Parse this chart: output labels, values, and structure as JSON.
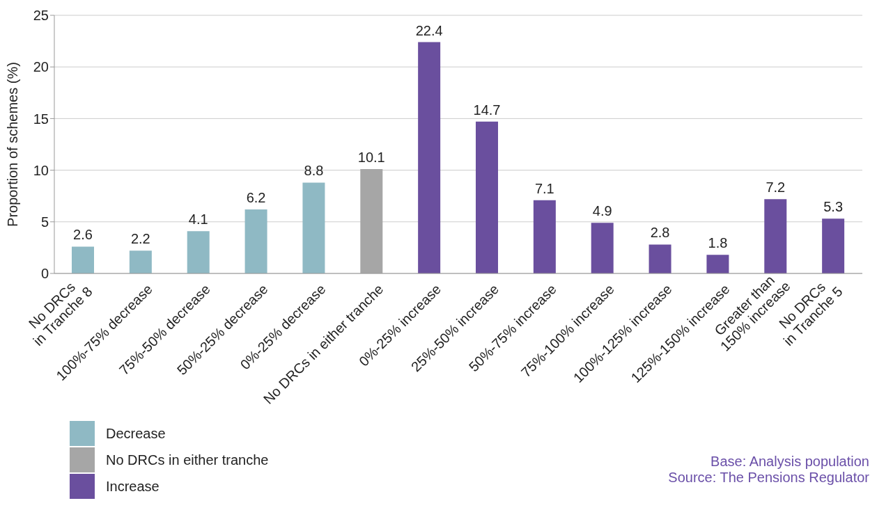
{
  "chart_data": {
    "type": "bar",
    "ylabel": "Proportion of schemes (%)",
    "categories": [
      "No DRCs\nin Tranche 8",
      "100%-75% decrease",
      "75%-50% decrease",
      "50%-25% decrease",
      "0%-25% decrease",
      "No DRCs in either tranche",
      "0%-25% increase",
      "25%-50% increase",
      "50%-75% increase",
      "75%-100% increase",
      "100%-125% increase",
      "125%-150% increase",
      "Greater than\n150% increase",
      "No DRCs\nin Tranche 5"
    ],
    "series": [
      {
        "name": "Decrease",
        "color": "#8fb9c4",
        "values": [
          2.6,
          2.2,
          4.1,
          6.2,
          8.8,
          null,
          null,
          null,
          null,
          null,
          null,
          null,
          null,
          null
        ]
      },
      {
        "name": "No DRCs in either tranche",
        "color": "#a6a6a6",
        "values": [
          null,
          null,
          null,
          null,
          null,
          10.1,
          null,
          null,
          null,
          null,
          null,
          null,
          null,
          null
        ]
      },
      {
        "name": "Increase",
        "color": "#6a4f9e",
        "values": [
          null,
          null,
          null,
          null,
          null,
          null,
          22.4,
          14.7,
          7.1,
          4.9,
          2.8,
          1.8,
          7.2,
          5.3
        ]
      }
    ],
    "stacked": true,
    "ylim": [
      0,
      25
    ],
    "yticks": [
      0,
      5,
      10,
      15,
      20,
      25
    ],
    "grid": "y",
    "legend": "bottom left",
    "data_labels": true,
    "annotations": [
      "Base: Analysis population",
      "Source: The Pensions Regulator"
    ]
  }
}
